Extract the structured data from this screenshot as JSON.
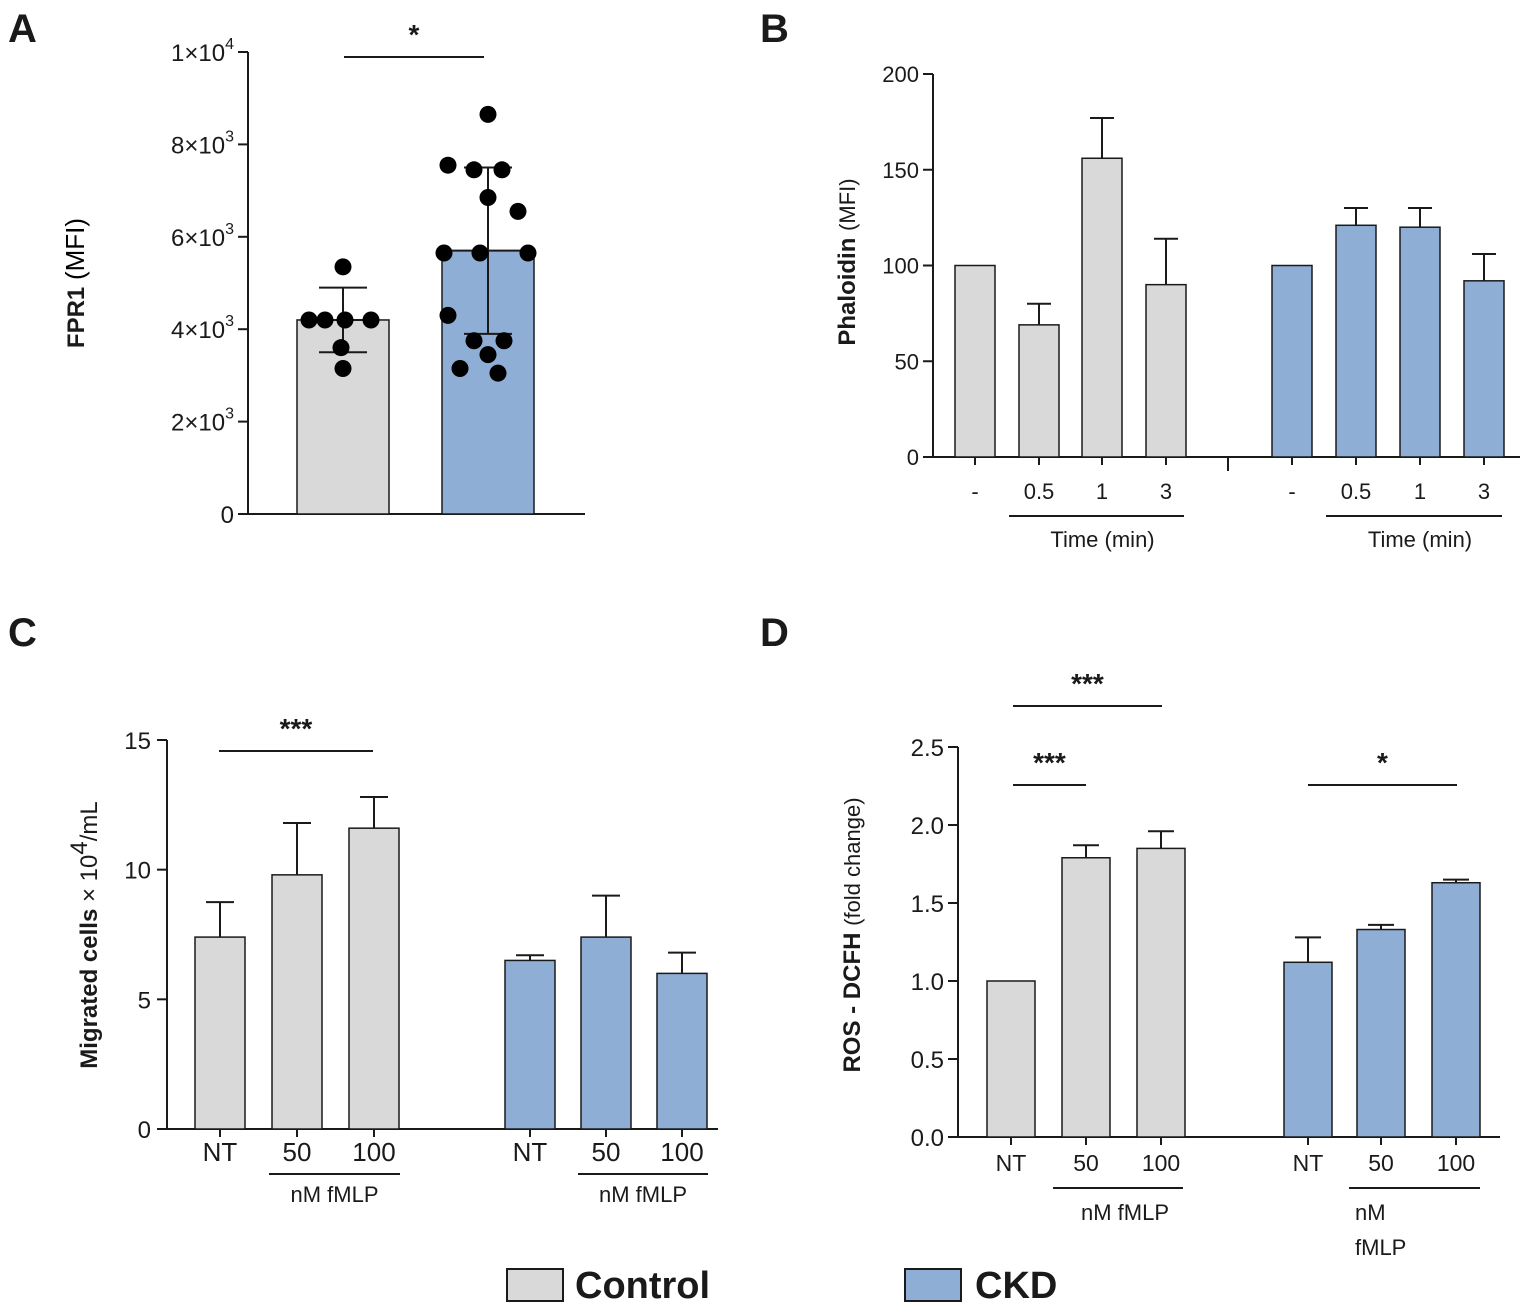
{
  "colors": {
    "control": "#d9d9d9",
    "ckd": "#8eaed6",
    "line": "#1a1a1a",
    "dot": "#000000"
  },
  "legend": {
    "control_label": "Control",
    "ckd_label": "CKD"
  },
  "chart_data": [
    {
      "panel": "A",
      "type": "bar",
      "ylabel_main": "FPR1",
      "ylabel_unit": "(MFI)",
      "ylim": [
        0,
        10000
      ],
      "yticks": [
        {
          "value": 0,
          "mant": "0",
          "exp": ""
        },
        {
          "value": 2000,
          "mant": "2×10",
          "exp": "3"
        },
        {
          "value": 4000,
          "mant": "4×10",
          "exp": "3"
        },
        {
          "value": 6000,
          "mant": "6×10",
          "exp": "3"
        },
        {
          "value": 8000,
          "mant": "8×10",
          "exp": "3"
        },
        {
          "value": 10000,
          "mant": "1×10",
          "exp": "4"
        }
      ],
      "categories": [
        "Control",
        "CKD"
      ],
      "values": [
        4200,
        5700
      ],
      "sd": [
        700,
        1800
      ],
      "points": [
        [
          5350,
          4200,
          4200,
          4200,
          4200,
          3600,
          3150
        ],
        [
          8650,
          7550,
          7450,
          7450,
          6850,
          6550,
          5650,
          5650,
          5650,
          4300,
          3750,
          3750,
          3450,
          3150,
          3050
        ]
      ],
      "significance": [
        {
          "from": 0,
          "to": 1,
          "label": "*"
        }
      ]
    },
    {
      "panel": "B",
      "type": "bar",
      "ylabel_main": "Phaloidin",
      "ylabel_unit": "(MFI)",
      "ylim": [
        0,
        200
      ],
      "yticks": [
        "0",
        "50",
        "100",
        "150",
        "200"
      ],
      "groups": [
        {
          "name": "Control",
          "categories": [
            "-",
            "0.5",
            "1",
            "3"
          ],
          "values": [
            100,
            69,
            156,
            90
          ],
          "errors": [
            0,
            11,
            21,
            24
          ],
          "time_label": "Time (min)"
        },
        {
          "name": "CKD",
          "categories": [
            "-",
            "0.5",
            "1",
            "3"
          ],
          "values": [
            100,
            121,
            120,
            92
          ],
          "errors": [
            0,
            9,
            10,
            14
          ],
          "time_label": "Time (min)"
        }
      ]
    },
    {
      "panel": "C",
      "type": "bar",
      "ylabel_main": "Migrated cells",
      "ylabel_unit": "× 10",
      "ylabel_exp": "4",
      "ylabel_tail": "/mL",
      "ylim": [
        0,
        15
      ],
      "yticks": [
        "0",
        "5",
        "10",
        "15"
      ],
      "groups": [
        {
          "name": "Control",
          "categories": [
            "NT",
            "50",
            "100"
          ],
          "values": [
            7.4,
            9.8,
            11.6
          ],
          "errors": [
            1.35,
            2.0,
            1.2
          ],
          "conc_label": "nM fMLP"
        },
        {
          "name": "CKD",
          "categories": [
            "NT",
            "50",
            "100"
          ],
          "values": [
            6.5,
            7.4,
            6.0
          ],
          "errors": [
            0.2,
            1.6,
            0.8
          ],
          "conc_label": "nM fMLP"
        }
      ],
      "significance": [
        {
          "group": 0,
          "from": 0,
          "to": 2,
          "label": "***"
        }
      ]
    },
    {
      "panel": "D",
      "type": "bar",
      "ylabel_main": "ROS - DCFH",
      "ylabel_unit": "(fold change)",
      "ylim": [
        0,
        2.5
      ],
      "yticks": [
        "0.0",
        "0.5",
        "1.0",
        "1.5",
        "2.0",
        "2.5"
      ],
      "groups": [
        {
          "name": "Control",
          "categories": [
            "NT",
            "50",
            "100"
          ],
          "values": [
            1.0,
            1.79,
            1.85
          ],
          "errors": [
            0,
            0.08,
            0.11
          ],
          "conc_label": "nM fMLP"
        },
        {
          "name": "CKD",
          "categories": [
            "NT",
            "50",
            "100"
          ],
          "values": [
            1.12,
            1.33,
            1.63
          ],
          "errors": [
            0.16,
            0.03,
            0.02
          ],
          "conc_label_1": "nM",
          "conc_label_2": "fMLP"
        }
      ],
      "significance": [
        {
          "group": 0,
          "from": 0,
          "to": 2,
          "label": "***"
        },
        {
          "group": 0,
          "from": 0,
          "to": 1,
          "label": "***"
        },
        {
          "group": 1,
          "from": 0,
          "to": 2,
          "label": "*"
        }
      ]
    }
  ]
}
